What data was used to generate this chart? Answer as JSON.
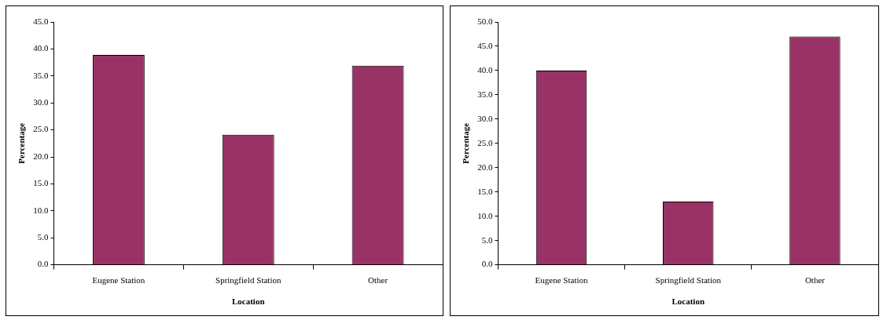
{
  "chart_data": [
    {
      "type": "bar",
      "categories": [
        "Eugene Station",
        "Springfield Station",
        "Other"
      ],
      "values": [
        38.9,
        24.1,
        36.9
      ],
      "color": "#993366",
      "xlabel": "Location",
      "ylabel": "Percentage",
      "ylim": [
        0,
        45
      ],
      "yticks": [
        {
          "value": 0,
          "label": "0.0"
        },
        {
          "value": 5,
          "label": "5.0"
        },
        {
          "value": 10,
          "label": "10.0"
        },
        {
          "value": 15,
          "label": "15.0"
        },
        {
          "value": 20,
          "label": "20.0"
        },
        {
          "value": 25,
          "label": "25.0"
        },
        {
          "value": 30,
          "label": "30.0"
        },
        {
          "value": 35,
          "label": "35.0"
        },
        {
          "value": 40,
          "label": "40.0"
        },
        {
          "value": 45,
          "label": "45.0"
        }
      ],
      "grid": false,
      "legend": false
    },
    {
      "type": "bar",
      "categories": [
        "Eugene Station",
        "Springfield Station",
        "Other"
      ],
      "values": [
        40.0,
        13.0,
        47.0
      ],
      "color": "#993366",
      "xlabel": "Location",
      "ylabel": "Percentage",
      "ylim": [
        0,
        50
      ],
      "yticks": [
        {
          "value": 0,
          "label": "0.0"
        },
        {
          "value": 5,
          "label": "5.0"
        },
        {
          "value": 10,
          "label": "10.0"
        },
        {
          "value": 15,
          "label": "15.0"
        },
        {
          "value": 20,
          "label": "20.0"
        },
        {
          "value": 25,
          "label": "25.0"
        },
        {
          "value": 30,
          "label": "30.0"
        },
        {
          "value": 35,
          "label": "35.0"
        },
        {
          "value": 40,
          "label": "40.0"
        },
        {
          "value": 45,
          "label": "45.0"
        },
        {
          "value": 50,
          "label": "50.0"
        }
      ],
      "grid": false,
      "legend": false
    }
  ]
}
